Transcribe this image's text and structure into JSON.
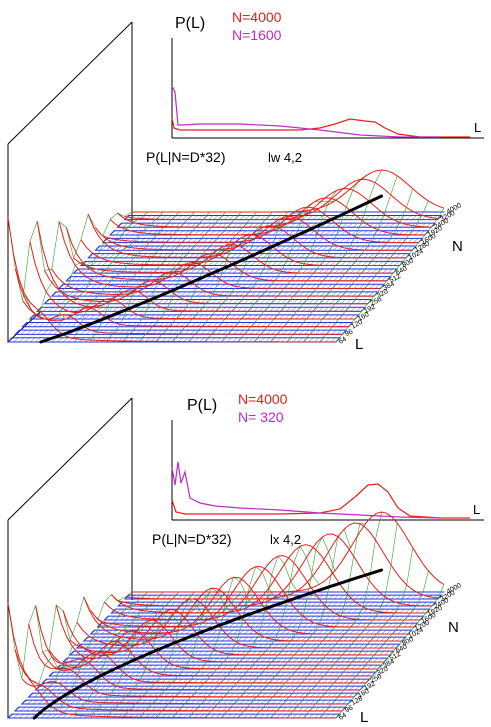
{
  "colors": {
    "red": "#e8201a",
    "magenta": "#c22ac8",
    "blue": "#2233dd",
    "green": "#2fa02f",
    "black": "#000000"
  },
  "panels": [
    {
      "inset_ylabel": "P(L)",
      "inset_xlabel": "L",
      "legend": [
        "N=4000",
        "N=1600"
      ],
      "title": "P(L|N=D*32)",
      "subtitle": "lw 4,2",
      "n_axis_label": "N",
      "l_axis_label": "L",
      "n_ticks": [
        "4000",
        "3200",
        "2400",
        "1920",
        "1600",
        "1280",
        "1024",
        "800",
        "640",
        "512",
        "384",
        "320",
        "256",
        "192",
        "160",
        "120",
        "96",
        "64"
      ]
    },
    {
      "inset_ylabel": "P(L)",
      "inset_xlabel": "L",
      "legend": [
        "N=4000",
        "N= 320"
      ],
      "title": "P(L|N=D*32)",
      "subtitle": "lx 4,2",
      "n_axis_label": "N",
      "l_axis_label": "L",
      "n_ticks": [
        "4000",
        "3200",
        "2400",
        "1920",
        "1600",
        "1200",
        "1024",
        "800",
        "640",
        "512",
        "384",
        "320",
        "256",
        "192",
        "160",
        "128",
        "96",
        "64"
      ]
    }
  ],
  "chart_data": [
    {
      "type": "line",
      "title": "P(L|N=D*32)",
      "subtitle": "lw 4,2",
      "kind": "3d waterfall of distributions P(L) for each N, black ridge line marks peak",
      "y_categories": [
        "64",
        "96",
        "120",
        "160",
        "192",
        "256",
        "320",
        "384",
        "512",
        "640",
        "800",
        "1024",
        "1280",
        "1600",
        "1920",
        "2400",
        "3200",
        "4000"
      ],
      "inset": {
        "ylabel": "P(L)",
        "xlabel": "L",
        "series": [
          {
            "name": "N=4000",
            "color": "red",
            "peak_x_fraction": 0.72
          },
          {
            "name": "N=1600",
            "color": "magenta",
            "peak_x_fraction": 0.02
          }
        ]
      }
    },
    {
      "type": "line",
      "title": "P(L|N=D*32)",
      "subtitle": "lx 4,2",
      "kind": "3d waterfall of distributions P(L) for each N, black ridge line marks peak",
      "y_categories": [
        "64",
        "96",
        "128",
        "160",
        "192",
        "224",
        "256",
        "320",
        "384",
        "512",
        "640",
        "800",
        "1024",
        "1200",
        "1600",
        "1920",
        "2400",
        "3200",
        "4000"
      ],
      "inset": {
        "ylabel": "P(L)",
        "xlabel": "L",
        "series": [
          {
            "name": "N=4000",
            "color": "red",
            "peak_x_fraction": 0.75
          },
          {
            "name": "N= 320",
            "color": "magenta",
            "peak_x_fraction": 0.06
          }
        ]
      }
    }
  ]
}
